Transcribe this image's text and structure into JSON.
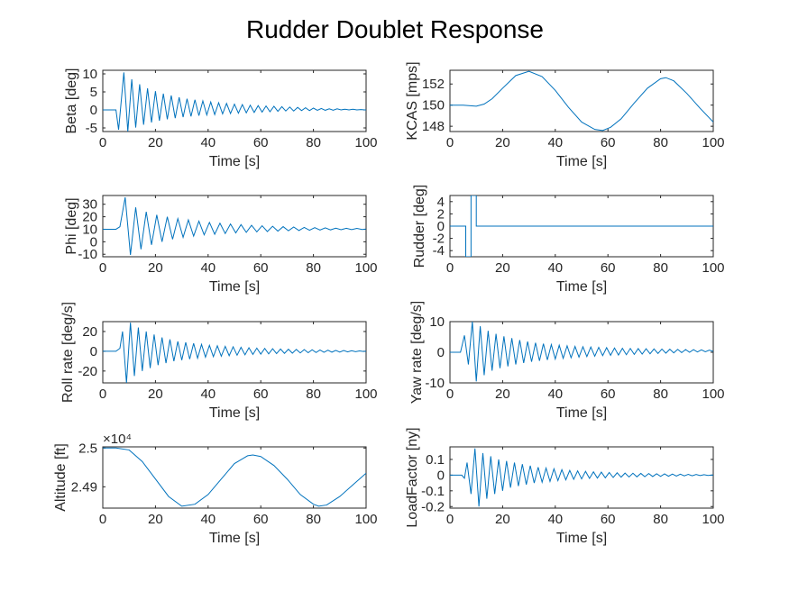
{
  "figure": {
    "title": "Rudder Doublet Response",
    "line_color": "#0072BD"
  },
  "chart_data": [
    {
      "type": "line",
      "xlabel": "Time [s]",
      "ylabel": "Beta [deg]",
      "xlim": [
        0,
        100
      ],
      "ylim": [
        -6,
        11
      ],
      "xticks": [
        0,
        20,
        40,
        60,
        80,
        100
      ],
      "xtick_labels": [
        "0",
        "20",
        "40",
        "60",
        "80",
        "100"
      ],
      "yticks": [
        -5,
        0,
        5,
        10
      ],
      "ytick_labels": [
        "-5",
        "0",
        "5",
        "10"
      ],
      "exponent": "",
      "series": [
        {
          "x": [
            0,
            5,
            6,
            8,
            9.5,
            11,
            12.5,
            14,
            15.5,
            17,
            18.5,
            20,
            21.5,
            23,
            24.5,
            26,
            27.5,
            29,
            30.5,
            32,
            33.5,
            35,
            36.5,
            38,
            39.5,
            41,
            42.5,
            44,
            45.5,
            47,
            48.5,
            50,
            51.5,
            53,
            54.5,
            56,
            57.5,
            59,
            60.5,
            62,
            63.5,
            65,
            66.5,
            68,
            69.5,
            71,
            72.5,
            74,
            75.5,
            77,
            78.5,
            80,
            81.5,
            83,
            84.5,
            86,
            87.5,
            89,
            90.5,
            92,
            93.5,
            95,
            96.5,
            98,
            99.5,
            100
          ],
          "y": [
            0,
            0,
            -5.5,
            10.4,
            -6.0,
            8.5,
            -4.9,
            7.1,
            -4.1,
            6.0,
            -3.5,
            5.2,
            -3.0,
            4.5,
            -2.6,
            4.0,
            -2.3,
            3.5,
            -2.0,
            3.1,
            -1.8,
            2.8,
            -1.6,
            2.5,
            -1.4,
            2.2,
            -1.3,
            2.0,
            -1.1,
            1.8,
            -1.0,
            1.6,
            -0.9,
            1.5,
            -0.8,
            1.3,
            -0.7,
            1.2,
            -0.6,
            1.1,
            -0.5,
            1.0,
            -0.4,
            0.9,
            -0.3,
            0.8,
            -0.3,
            0.7,
            -0.2,
            0.6,
            -0.2,
            0.5,
            -0.1,
            0.4,
            -0.1,
            0.3,
            -0.1,
            0.3,
            0,
            0.2,
            0,
            0.2,
            0,
            0.1,
            0,
            0
          ]
        }
      ]
    },
    {
      "type": "line",
      "xlabel": "Time [s]",
      "ylabel": "KCAS [mps]",
      "xlim": [
        0,
        100
      ],
      "ylim": [
        147.5,
        153.3
      ],
      "xticks": [
        0,
        20,
        40,
        60,
        80,
        100
      ],
      "xtick_labels": [
        "0",
        "20",
        "40",
        "60",
        "80",
        "100"
      ],
      "yticks": [
        148,
        150,
        152
      ],
      "ytick_labels": [
        "148",
        "150",
        "152"
      ],
      "exponent": "",
      "series": [
        {
          "x": [
            0,
            5,
            10,
            13,
            16,
            20,
            25,
            30,
            35,
            40,
            45,
            50,
            55,
            58,
            61,
            65,
            70,
            75,
            80,
            82,
            85,
            90,
            95,
            100
          ],
          "y": [
            150,
            150,
            149.9,
            150.1,
            150.6,
            151.6,
            152.8,
            153.2,
            152.7,
            151.4,
            149.8,
            148.4,
            147.7,
            147.6,
            147.9,
            148.7,
            150.2,
            151.6,
            152.5,
            152.6,
            152.3,
            151.1,
            149.7,
            148.4
          ]
        }
      ]
    },
    {
      "type": "line",
      "xlabel": "Time [s]",
      "ylabel": "Phi [deg]",
      "xlim": [
        0,
        100
      ],
      "ylim": [
        -12,
        37
      ],
      "xticks": [
        0,
        20,
        40,
        60,
        80,
        100
      ],
      "xtick_labels": [
        "0",
        "20",
        "40",
        "60",
        "80",
        "100"
      ],
      "yticks": [
        -10,
        0,
        10,
        20,
        30
      ],
      "ytick_labels": [
        "-10",
        "0",
        "10",
        "20",
        "30"
      ],
      "exponent": "",
      "series": [
        {
          "x": [
            0,
            5,
            6.5,
            8.5,
            10.5,
            12.5,
            14.5,
            16.5,
            18.5,
            20.5,
            22.5,
            24.5,
            26.5,
            28.5,
            30.5,
            32.5,
            34.5,
            36.5,
            38.5,
            40.5,
            42.5,
            44.5,
            46.5,
            48.5,
            50.5,
            52.5,
            54.5,
            56.5,
            58.5,
            60.5,
            62.5,
            64.5,
            66.5,
            68.5,
            70.5,
            72.5,
            74.5,
            76.5,
            78.5,
            80.5,
            82.5,
            84.5,
            86.5,
            88.5,
            90.5,
            92.5,
            94.5,
            96.5,
            98.5,
            100
          ],
          "y": [
            10,
            10,
            12,
            35.5,
            -10.5,
            27.5,
            -6.0,
            24.0,
            -2.5,
            21.5,
            0.0,
            20.0,
            2.0,
            18.5,
            3.5,
            17.5,
            4.5,
            16.5,
            5.5,
            15.5,
            6.0,
            14.8,
            6.6,
            14.2,
            7.1,
            13.7,
            7.5,
            13.2,
            7.9,
            12.8,
            8.2,
            12.4,
            8.5,
            12.1,
            8.8,
            11.8,
            9.0,
            11.5,
            9.2,
            11.3,
            9.4,
            11.1,
            9.5,
            10.9,
            9.6,
            10.8,
            9.7,
            10.7,
            9.8,
            10.2
          ]
        }
      ]
    },
    {
      "type": "line",
      "xlabel": "Time [s]",
      "ylabel": "Rudder [deg]",
      "xlim": [
        0,
        100
      ],
      "ylim": [
        -5,
        5
      ],
      "xticks": [
        0,
        20,
        40,
        60,
        80,
        100
      ],
      "xtick_labels": [
        "0",
        "20",
        "40",
        "60",
        "80",
        "100"
      ],
      "yticks": [
        -4,
        -2,
        0,
        2,
        4
      ],
      "ytick_labels": [
        "-4",
        "-2",
        "0",
        "2",
        "4"
      ],
      "exponent": "",
      "series": [
        {
          "x": [
            0,
            6,
            6,
            8,
            8,
            10,
            10,
            100
          ],
          "y": [
            0,
            0,
            -5,
            -5,
            5,
            5,
            0,
            0
          ]
        }
      ]
    },
    {
      "type": "line",
      "xlabel": "Time [s]",
      "ylabel": "Roll rate [deg/s]",
      "xlim": [
        0,
        100
      ],
      "ylim": [
        -32,
        30
      ],
      "xticks": [
        0,
        20,
        40,
        60,
        80,
        100
      ],
      "xtick_labels": [
        "0",
        "20",
        "40",
        "60",
        "80",
        "100"
      ],
      "yticks": [
        -20,
        0,
        20
      ],
      "ytick_labels": [
        "-20",
        "0",
        "20"
      ],
      "exponent": "",
      "series": [
        {
          "x": [
            0,
            5,
            6.5,
            7.5,
            9.0,
            10.5,
            12.0,
            13.5,
            15.0,
            16.5,
            18.0,
            19.5,
            21.0,
            22.5,
            24.0,
            25.5,
            27.0,
            28.5,
            30.0,
            31.5,
            33.0,
            34.5,
            36.0,
            37.5,
            39.0,
            40.5,
            42.0,
            43.5,
            45.0,
            46.5,
            48.0,
            49.5,
            51.0,
            52.5,
            54.0,
            55.5,
            57.0,
            58.5,
            60.0,
            61.5,
            63.0,
            64.5,
            66.0,
            67.5,
            69.0,
            70.5,
            72.0,
            73.5,
            75.0,
            76.5,
            78.0,
            79.5,
            81.0,
            82.5,
            84.0,
            85.5,
            87.0,
            88.5,
            90.0,
            91.5,
            93.0,
            94.5,
            96.0,
            97.5,
            99.0,
            100
          ],
          "y": [
            0,
            0,
            3,
            20,
            -32,
            29,
            -25,
            24,
            -20,
            20,
            -17,
            17,
            -14,
            14,
            -12,
            12,
            -10,
            10,
            -9,
            9,
            -8,
            8,
            -7,
            7,
            -6,
            6,
            -5.5,
            5.5,
            -5,
            5,
            -4.5,
            4.5,
            -4,
            4,
            -3.6,
            3.6,
            -3.2,
            3.2,
            -2.9,
            2.9,
            -2.6,
            2.6,
            -2.3,
            2.3,
            -2.1,
            2.1,
            -1.9,
            1.9,
            -1.7,
            1.7,
            -1.5,
            1.5,
            -1.3,
            1.3,
            -1.1,
            1.1,
            -0.9,
            0.9,
            -0.8,
            0.8,
            -0.6,
            0.6,
            -0.4,
            0.4,
            -0.2,
            0
          ]
        }
      ]
    },
    {
      "type": "line",
      "xlabel": "Time [s]",
      "ylabel": "Yaw rate [deg/s]",
      "xlim": [
        0,
        100
      ],
      "ylim": [
        -10,
        10
      ],
      "xticks": [
        0,
        20,
        40,
        60,
        80,
        100
      ],
      "xtick_labels": [
        "0",
        "20",
        "40",
        "60",
        "80",
        "100"
      ],
      "yticks": [
        -10,
        0,
        10
      ],
      "ytick_labels": [
        "-10",
        "0",
        "10"
      ],
      "exponent": "",
      "series": [
        {
          "x": [
            0,
            4,
            5.5,
            7,
            8.5,
            10,
            11.5,
            13,
            14.5,
            16,
            17.5,
            19,
            20.5,
            22,
            23.5,
            25,
            26.5,
            28,
            29.5,
            31,
            32.5,
            34,
            35.5,
            37,
            38.5,
            40,
            41.5,
            43,
            44.5,
            46,
            47.5,
            49,
            50.5,
            52,
            53.5,
            55,
            56.5,
            58,
            59.5,
            61,
            62.5,
            64,
            65.5,
            67,
            68.5,
            70,
            71.5,
            73,
            74.5,
            76,
            77.5,
            79,
            80.5,
            82,
            83.5,
            85,
            86.5,
            88,
            89.5,
            91,
            92.5,
            94,
            95.5,
            97,
            98.5,
            100
          ],
          "y": [
            0,
            0,
            5.5,
            -4,
            10,
            -9.5,
            8.5,
            -7.5,
            7,
            -6,
            6,
            -5.2,
            5.2,
            -4.6,
            4.6,
            -4,
            4,
            -3.5,
            3.5,
            -3.1,
            3.1,
            -2.8,
            2.8,
            -2.5,
            2.5,
            -2.2,
            2.3,
            -2,
            2.1,
            -1.8,
            1.9,
            -1.6,
            1.8,
            -1.4,
            1.7,
            -1.3,
            1.6,
            -1.1,
            1.5,
            -1,
            1.4,
            -0.9,
            1.3,
            -0.8,
            1.25,
            -0.7,
            1.2,
            -0.6,
            1.15,
            -0.5,
            1.1,
            -0.4,
            1.05,
            -0.3,
            1.0,
            -0.2,
            0.95,
            -0.1,
            0.9,
            0,
            0.85,
            0.1,
            0.8,
            0.15,
            0.7,
            0.3
          ]
        }
      ]
    },
    {
      "type": "line",
      "xlabel": "Time [s]",
      "ylabel": "Altitude [ft]",
      "xlim": [
        0,
        100
      ],
      "ylim": [
        24845,
        25003
      ],
      "xticks": [
        0,
        20,
        40,
        60,
        80,
        100
      ],
      "xtick_labels": [
        "0",
        "20",
        "40",
        "60",
        "80",
        "100"
      ],
      "yticks": [
        24900,
        25000
      ],
      "ytick_labels": [
        "2.49",
        "2.5"
      ],
      "exponent": "×10⁴",
      "series": [
        {
          "x": [
            0,
            5,
            10,
            15,
            20,
            25,
            30,
            35,
            40,
            45,
            50,
            55,
            57,
            60,
            65,
            70,
            75,
            80,
            82,
            85,
            90,
            95,
            100
          ],
          "y": [
            25000,
            25000,
            24995,
            24965,
            24920,
            24875,
            24850,
            24855,
            24880,
            24920,
            24960,
            24980,
            24982,
            24978,
            24955,
            24920,
            24880,
            24855,
            24850,
            24853,
            24875,
            24905,
            24935
          ]
        }
      ]
    },
    {
      "type": "line",
      "xlabel": "Time [s]",
      "ylabel": "LoadFactor [ny]",
      "xlim": [
        0,
        100
      ],
      "ylim": [
        -0.21,
        0.18
      ],
      "xticks": [
        0,
        20,
        40,
        60,
        80,
        100
      ],
      "xtick_labels": [
        "0",
        "20",
        "40",
        "60",
        "80",
        "100"
      ],
      "yticks": [
        -0.2,
        -0.1,
        0,
        0.1
      ],
      "ytick_labels": [
        "-0.2",
        "-0.1",
        "0",
        "0.1"
      ],
      "exponent": "",
      "series": [
        {
          "x": [
            0,
            4.5,
            5.5,
            6.5,
            8,
            9.5,
            11,
            12.5,
            14,
            15.5,
            17,
            18.5,
            20,
            21.5,
            23,
            24.5,
            26,
            27.5,
            29,
            30.5,
            32,
            33.5,
            35,
            36.5,
            38,
            39.5,
            41,
            42.5,
            44,
            45.5,
            47,
            48.5,
            50,
            51.5,
            53,
            54.5,
            56,
            57.5,
            59,
            60.5,
            62,
            63.5,
            65,
            66.5,
            68,
            69.5,
            71,
            72.5,
            74,
            75.5,
            77,
            78.5,
            80,
            81.5,
            83,
            84.5,
            86,
            87.5,
            89,
            90.5,
            92,
            93.5,
            95,
            96.5,
            98,
            99.5,
            100
          ],
          "y": [
            0,
            0,
            -0.02,
            0.08,
            -0.12,
            0.17,
            -0.2,
            0.14,
            -0.15,
            0.12,
            -0.12,
            0.1,
            -0.1,
            0.09,
            -0.08,
            0.08,
            -0.07,
            0.07,
            -0.06,
            0.06,
            -0.05,
            0.05,
            -0.045,
            0.045,
            -0.04,
            0.04,
            -0.035,
            0.035,
            -0.03,
            0.03,
            -0.027,
            0.027,
            -0.024,
            0.024,
            -0.021,
            0.021,
            -0.019,
            0.019,
            -0.017,
            0.017,
            -0.015,
            0.015,
            -0.013,
            0.013,
            -0.012,
            0.012,
            -0.011,
            0.011,
            -0.01,
            0.01,
            -0.009,
            0.009,
            -0.008,
            0.008,
            -0.007,
            0.007,
            -0.006,
            0.006,
            -0.005,
            0.005,
            -0.004,
            0.004,
            -0.003,
            0.003,
            -0.002,
            0.001,
            0
          ]
        }
      ]
    }
  ]
}
